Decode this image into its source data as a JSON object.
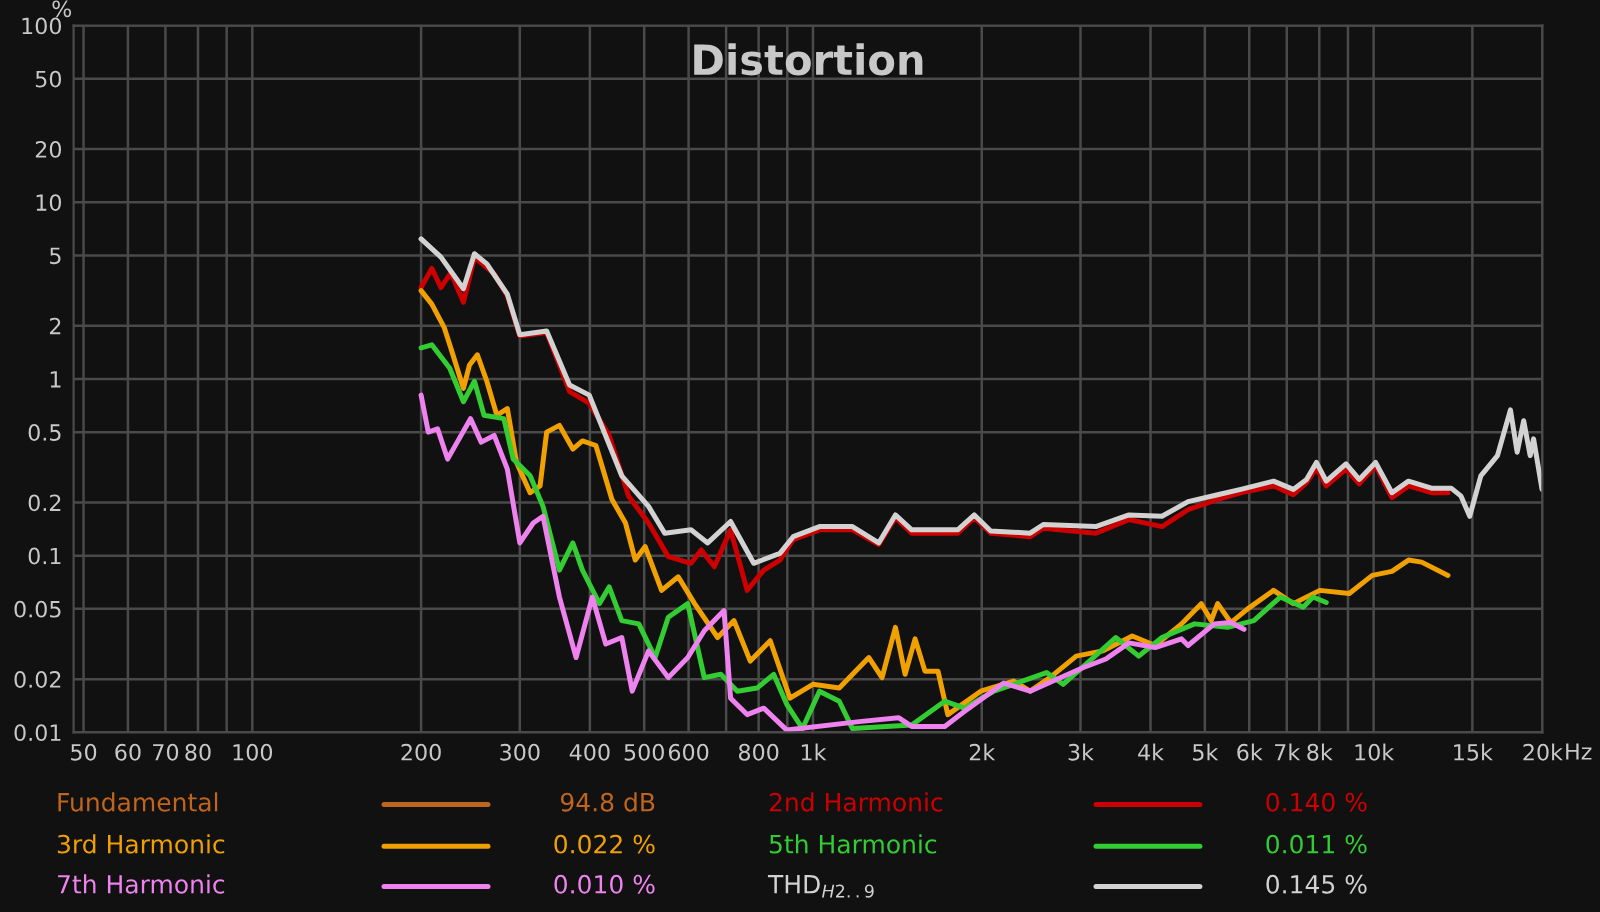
{
  "chart_data": {
    "type": "line",
    "title": "Distortion",
    "ylabel": "%",
    "log": "xy",
    "grid": true,
    "legend": "bottom",
    "marker": "none",
    "line_style": "solid",
    "xlim": [
      48,
      20000
    ],
    "ylim": [
      0.01,
      100
    ],
    "xticks": [
      50,
      60,
      70,
      80,
      {
        "value": 90,
        "label": null
      },
      100,
      200,
      300,
      400,
      500,
      600,
      {
        "value": 700,
        "label": null
      },
      800,
      {
        "value": 900,
        "label": null
      },
      {
        "value": 1000,
        "label": "1k"
      },
      {
        "value": 2000,
        "label": "2k"
      },
      {
        "value": 3000,
        "label": "3k"
      },
      {
        "value": 4000,
        "label": "4k"
      },
      {
        "value": 5000,
        "label": "5k"
      },
      {
        "value": 6000,
        "label": "6k"
      },
      {
        "value": 7000,
        "label": "7k"
      },
      {
        "value": 8000,
        "label": "8k"
      },
      {
        "value": 9000,
        "label": null
      },
      {
        "value": 10000,
        "label": "10k"
      },
      {
        "value": 15000,
        "label": "15k"
      },
      {
        "value": 20000,
        "label": "20k"
      }
    ],
    "xlabel": "Hz",
    "yticks": [
      100,
      50,
      20,
      10,
      5,
      2,
      1,
      0.5,
      0.2,
      0.1,
      0.05,
      0.02,
      0.01
    ],
    "annotations": [
      "94.8 dB",
      "0.140 %",
      "0.022 %",
      "0.011 %",
      "0.010 %",
      "0.145 %"
    ],
    "series": [
      {
        "name": "Fundamental",
        "color": "#c0651e"
      },
      {
        "name": "2nd Harmonic",
        "color": "#cc0000",
        "x": [
          200,
          209,
          217,
          226,
          238,
          249,
          270,
          285,
          300,
          335,
          368,
          399,
          433,
          469,
          509,
          552,
          606,
          632,
          667,
          713,
          763,
          817,
          873,
          922,
          1027,
          1176,
          1310,
          1403,
          1500,
          1812,
          1940,
          2075,
          2440,
          2576,
          3195,
          3660,
          4192,
          4667,
          5270,
          5794,
          6630,
          7190,
          7592,
          7906,
          8232,
          8927,
          9425,
          10080,
          10780,
          11540,
          12680,
          13570
        ],
        "values": [
          3.29,
          4.22,
          3.29,
          4.0,
          2.72,
          4.89,
          3.93,
          2.96,
          1.75,
          1.83,
          0.847,
          0.729,
          0.479,
          0.217,
          0.153,
          0.0987,
          0.0905,
          0.1077,
          0.0865,
          0.14,
          0.0636,
          0.0828,
          0.0944,
          0.123,
          0.14,
          0.14,
          0.1156,
          0.164,
          0.134,
          0.134,
          0.164,
          0.134,
          0.128,
          0.143,
          0.134,
          0.16,
          0.146,
          0.182,
          0.208,
          0.227,
          0.248,
          0.221,
          0.259,
          0.314,
          0.248,
          0.309,
          0.255,
          0.323,
          0.213,
          0.248,
          0.227,
          0.227
        ]
      },
      {
        "name": "3rd Harmonic",
        "color": "#f0a000",
        "x": [
          200,
          209,
          220,
          227,
          238,
          244,
          252,
          262,
          273,
          285,
          296,
          313,
          326,
          335,
          353,
          373,
          388,
          410,
          438,
          463,
          482,
          502,
          537,
          575,
          615,
          676,
          723,
          773,
          839,
          910,
          1000,
          1114,
          1258,
          1328,
          1403,
          1460,
          1521,
          1584,
          1671,
          1740,
          1992,
          2280,
          2440,
          2646,
          2948,
          3285,
          3711,
          4077,
          4544,
          4927,
          5131,
          5270,
          5565,
          5953,
          6630,
          7190,
          8015,
          9050,
          9943,
          10780,
          11540,
          12180,
          13570
        ],
        "values": [
          3.16,
          2.65,
          1.95,
          1.43,
          0.884,
          1.2,
          1.37,
          0.97,
          0.623,
          0.68,
          0.337,
          0.227,
          0.248,
          0.5,
          0.546,
          0.401,
          0.446,
          0.42,
          0.208,
          0.153,
          0.0944,
          0.1125,
          0.0636,
          0.0759,
          0.0535,
          0.0344,
          0.0429,
          0.0253,
          0.033,
          0.0156,
          0.0187,
          0.0178,
          0.0265,
          0.0204,
          0.0393,
          0.0213,
          0.0338,
          0.0222,
          0.0222,
          0.0126,
          0.0171,
          0.0195,
          0.0171,
          0.0204,
          0.027,
          0.0289,
          0.0351,
          0.031,
          0.0411,
          0.0535,
          0.0429,
          0.0535,
          0.0418,
          0.0498,
          0.0636,
          0.0535,
          0.0636,
          0.061,
          0.0773,
          0.0815,
          0.0944,
          0.0919,
          0.0773
        ]
      },
      {
        "name": "5th Harmonic",
        "color": "#33cc33",
        "x": [
          200,
          209,
          225,
          238,
          249,
          259,
          281,
          292,
          313,
          330,
          353,
          373,
          388,
          416,
          433,
          456,
          489,
          523,
          552,
          598,
          640,
          685,
          733,
          795,
          851,
          898,
          958,
          1027,
          1114,
          1176,
          1500,
          1718,
          1862,
          2103,
          2280,
          2610,
          2793,
          3112,
          3467,
          3811,
          4192,
          4793,
          5489,
          6115,
          6816,
          7487,
          7797,
          8232
        ],
        "values": [
          1.5,
          1.56,
          1.15,
          0.743,
          0.97,
          0.623,
          0.596,
          0.352,
          0.283,
          0.19,
          0.0828,
          0.118,
          0.0828,
          0.0535,
          0.0665,
          0.0429,
          0.0411,
          0.0265,
          0.0448,
          0.0535,
          0.0204,
          0.0213,
          0.0171,
          0.0178,
          0.0213,
          0.0144,
          0.0105,
          0.0171,
          0.015,
          0.0105,
          0.011,
          0.015,
          0.0137,
          0.0171,
          0.0187,
          0.0218,
          0.0187,
          0.0253,
          0.0344,
          0.027,
          0.0344,
          0.0411,
          0.0393,
          0.0429,
          0.0583,
          0.0511,
          0.0583,
          0.0543
        ]
      },
      {
        "name": "7th Harmonic",
        "color": "#ee82ee",
        "x": [
          200,
          206,
          214,
          223,
          232,
          245,
          256,
          270,
          285,
          300,
          317,
          330,
          353,
          378,
          404,
          427,
          456,
          476,
          509,
          552,
          598,
          640,
          694,
          713,
          763,
          817,
          898,
          1209,
          1421,
          1500,
          1718,
          1862,
          2190,
          2440,
          2793,
          3029,
          3330,
          3660,
          4077,
          4544,
          4667,
          5196,
          5565,
          5872
        ],
        "values": [
          0.81,
          0.5,
          0.522,
          0.352,
          0.439,
          0.596,
          0.439,
          0.479,
          0.309,
          0.118,
          0.153,
          0.167,
          0.0583,
          0.0265,
          0.0583,
          0.0316,
          0.0344,
          0.0171,
          0.0289,
          0.0204,
          0.0265,
          0.0376,
          0.0489,
          0.0156,
          0.0126,
          0.0137,
          0.0103,
          0.0115,
          0.0121,
          0.0108,
          0.0108,
          0.0131,
          0.019,
          0.0171,
          0.0207,
          0.0232,
          0.026,
          0.0321,
          0.0302,
          0.0338,
          0.031,
          0.0411,
          0.0418,
          0.0383
        ]
      },
      {
        "name": "THD$_{H2..9}$",
        "color": "#d2d2d2",
        "x": [
          200,
          217,
          238,
          249,
          262,
          285,
          300,
          335,
          368,
          399,
          456,
          509,
          544,
          606,
          649,
          713,
          784,
          873,
          922,
          1027,
          1176,
          1310,
          1403,
          1500,
          1812,
          1940,
          2075,
          2440,
          2576,
          3195,
          3660,
          4192,
          4667,
          5270,
          5794,
          6630,
          7190,
          7592,
          7906,
          8232,
          8927,
          9425,
          10080,
          10780,
          11540,
          12680,
          13750,
          14320,
          14840,
          15530,
          16630,
          17540,
          18030,
          18520,
          19020,
          19290,
          19970
        ],
        "values": [
          6.2,
          4.89,
          3.24,
          5.11,
          4.48,
          3.02,
          1.78,
          1.87,
          0.924,
          0.81,
          0.283,
          0.19,
          0.134,
          0.14,
          0.118,
          0.156,
          0.0905,
          0.103,
          0.128,
          0.146,
          0.146,
          0.118,
          0.17,
          0.14,
          0.14,
          0.17,
          0.138,
          0.134,
          0.15,
          0.146,
          0.17,
          0.167,
          0.202,
          0.221,
          0.237,
          0.264,
          0.237,
          0.27,
          0.337,
          0.264,
          0.331,
          0.27,
          0.337,
          0.227,
          0.264,
          0.241,
          0.241,
          0.217,
          0.167,
          0.283,
          0.368,
          0.668,
          0.385,
          0.58,
          0.368,
          0.458,
          0.237
        ]
      }
    ]
  }
}
